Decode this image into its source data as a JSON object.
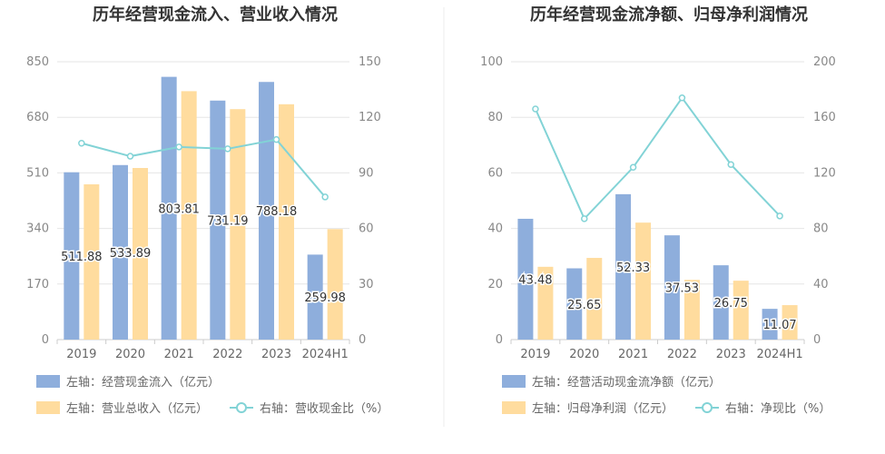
{
  "chart_data": [
    {
      "type": "bar",
      "title": "历年经营现金流入、营业收入情况",
      "categories": [
        "2019",
        "2020",
        "2021",
        "2022",
        "2023",
        "2024H1"
      ],
      "y_left": {
        "ticks": [
          0,
          170,
          340,
          510,
          680,
          850
        ],
        "ylim": [
          0,
          850
        ]
      },
      "y_right": {
        "ticks": [
          0,
          30,
          60,
          90,
          120,
          150
        ],
        "ylim": [
          0,
          150
        ]
      },
      "grid": true,
      "legend_position": "bottom",
      "series": [
        {
          "name": "左轴：经营现金流入（亿元）",
          "type": "bar",
          "axis": "left",
          "color": "#8eaedc",
          "values": [
            511.88,
            533.89,
            803.81,
            731.19,
            788.18,
            259.98
          ],
          "data_labels": [
            "511.88",
            "533.89",
            "803.81",
            "731.19",
            "788.18",
            "259.98"
          ]
        },
        {
          "name": "左轴：营业总收入（亿元）",
          "type": "bar",
          "axis": "left",
          "color": "#ffdc9e",
          "values": [
            475,
            525,
            760,
            705,
            720,
            338
          ]
        },
        {
          "name": "右轴：营收现金比（%）",
          "type": "line",
          "axis": "right",
          "color": "#82d3d6",
          "values": [
            106,
            99,
            104,
            103,
            108,
            77
          ]
        }
      ]
    },
    {
      "type": "bar",
      "title": "历年经营现金流净额、归母净利润情况",
      "categories": [
        "2019",
        "2020",
        "2021",
        "2022",
        "2023",
        "2024H1"
      ],
      "y_left": {
        "ticks": [
          0,
          20,
          40,
          60,
          80,
          100
        ],
        "ylim": [
          0,
          100
        ]
      },
      "y_right": {
        "ticks": [
          0,
          40,
          80,
          120,
          160,
          200
        ],
        "ylim": [
          0,
          200
        ]
      },
      "grid": true,
      "legend_position": "bottom",
      "series": [
        {
          "name": "左轴：经营活动现金流净额（亿元）",
          "type": "bar",
          "axis": "left",
          "color": "#8eaedc",
          "values": [
            43.48,
            25.65,
            52.33,
            37.53,
            26.75,
            11.07
          ],
          "data_labels": [
            "43.48",
            "25.65",
            "52.33",
            "37.53",
            "26.75",
            "11.07"
          ]
        },
        {
          "name": "左轴：归母净利润（亿元）",
          "type": "bar",
          "axis": "left",
          "color": "#ffdc9e",
          "values": [
            26.2,
            29.4,
            42.1,
            21.5,
            21.2,
            12.4
          ]
        },
        {
          "name": "右轴：净现比（%）",
          "type": "line",
          "axis": "right",
          "color": "#82d3d6",
          "values": [
            166,
            87,
            124,
            174,
            126,
            89
          ]
        }
      ]
    }
  ]
}
